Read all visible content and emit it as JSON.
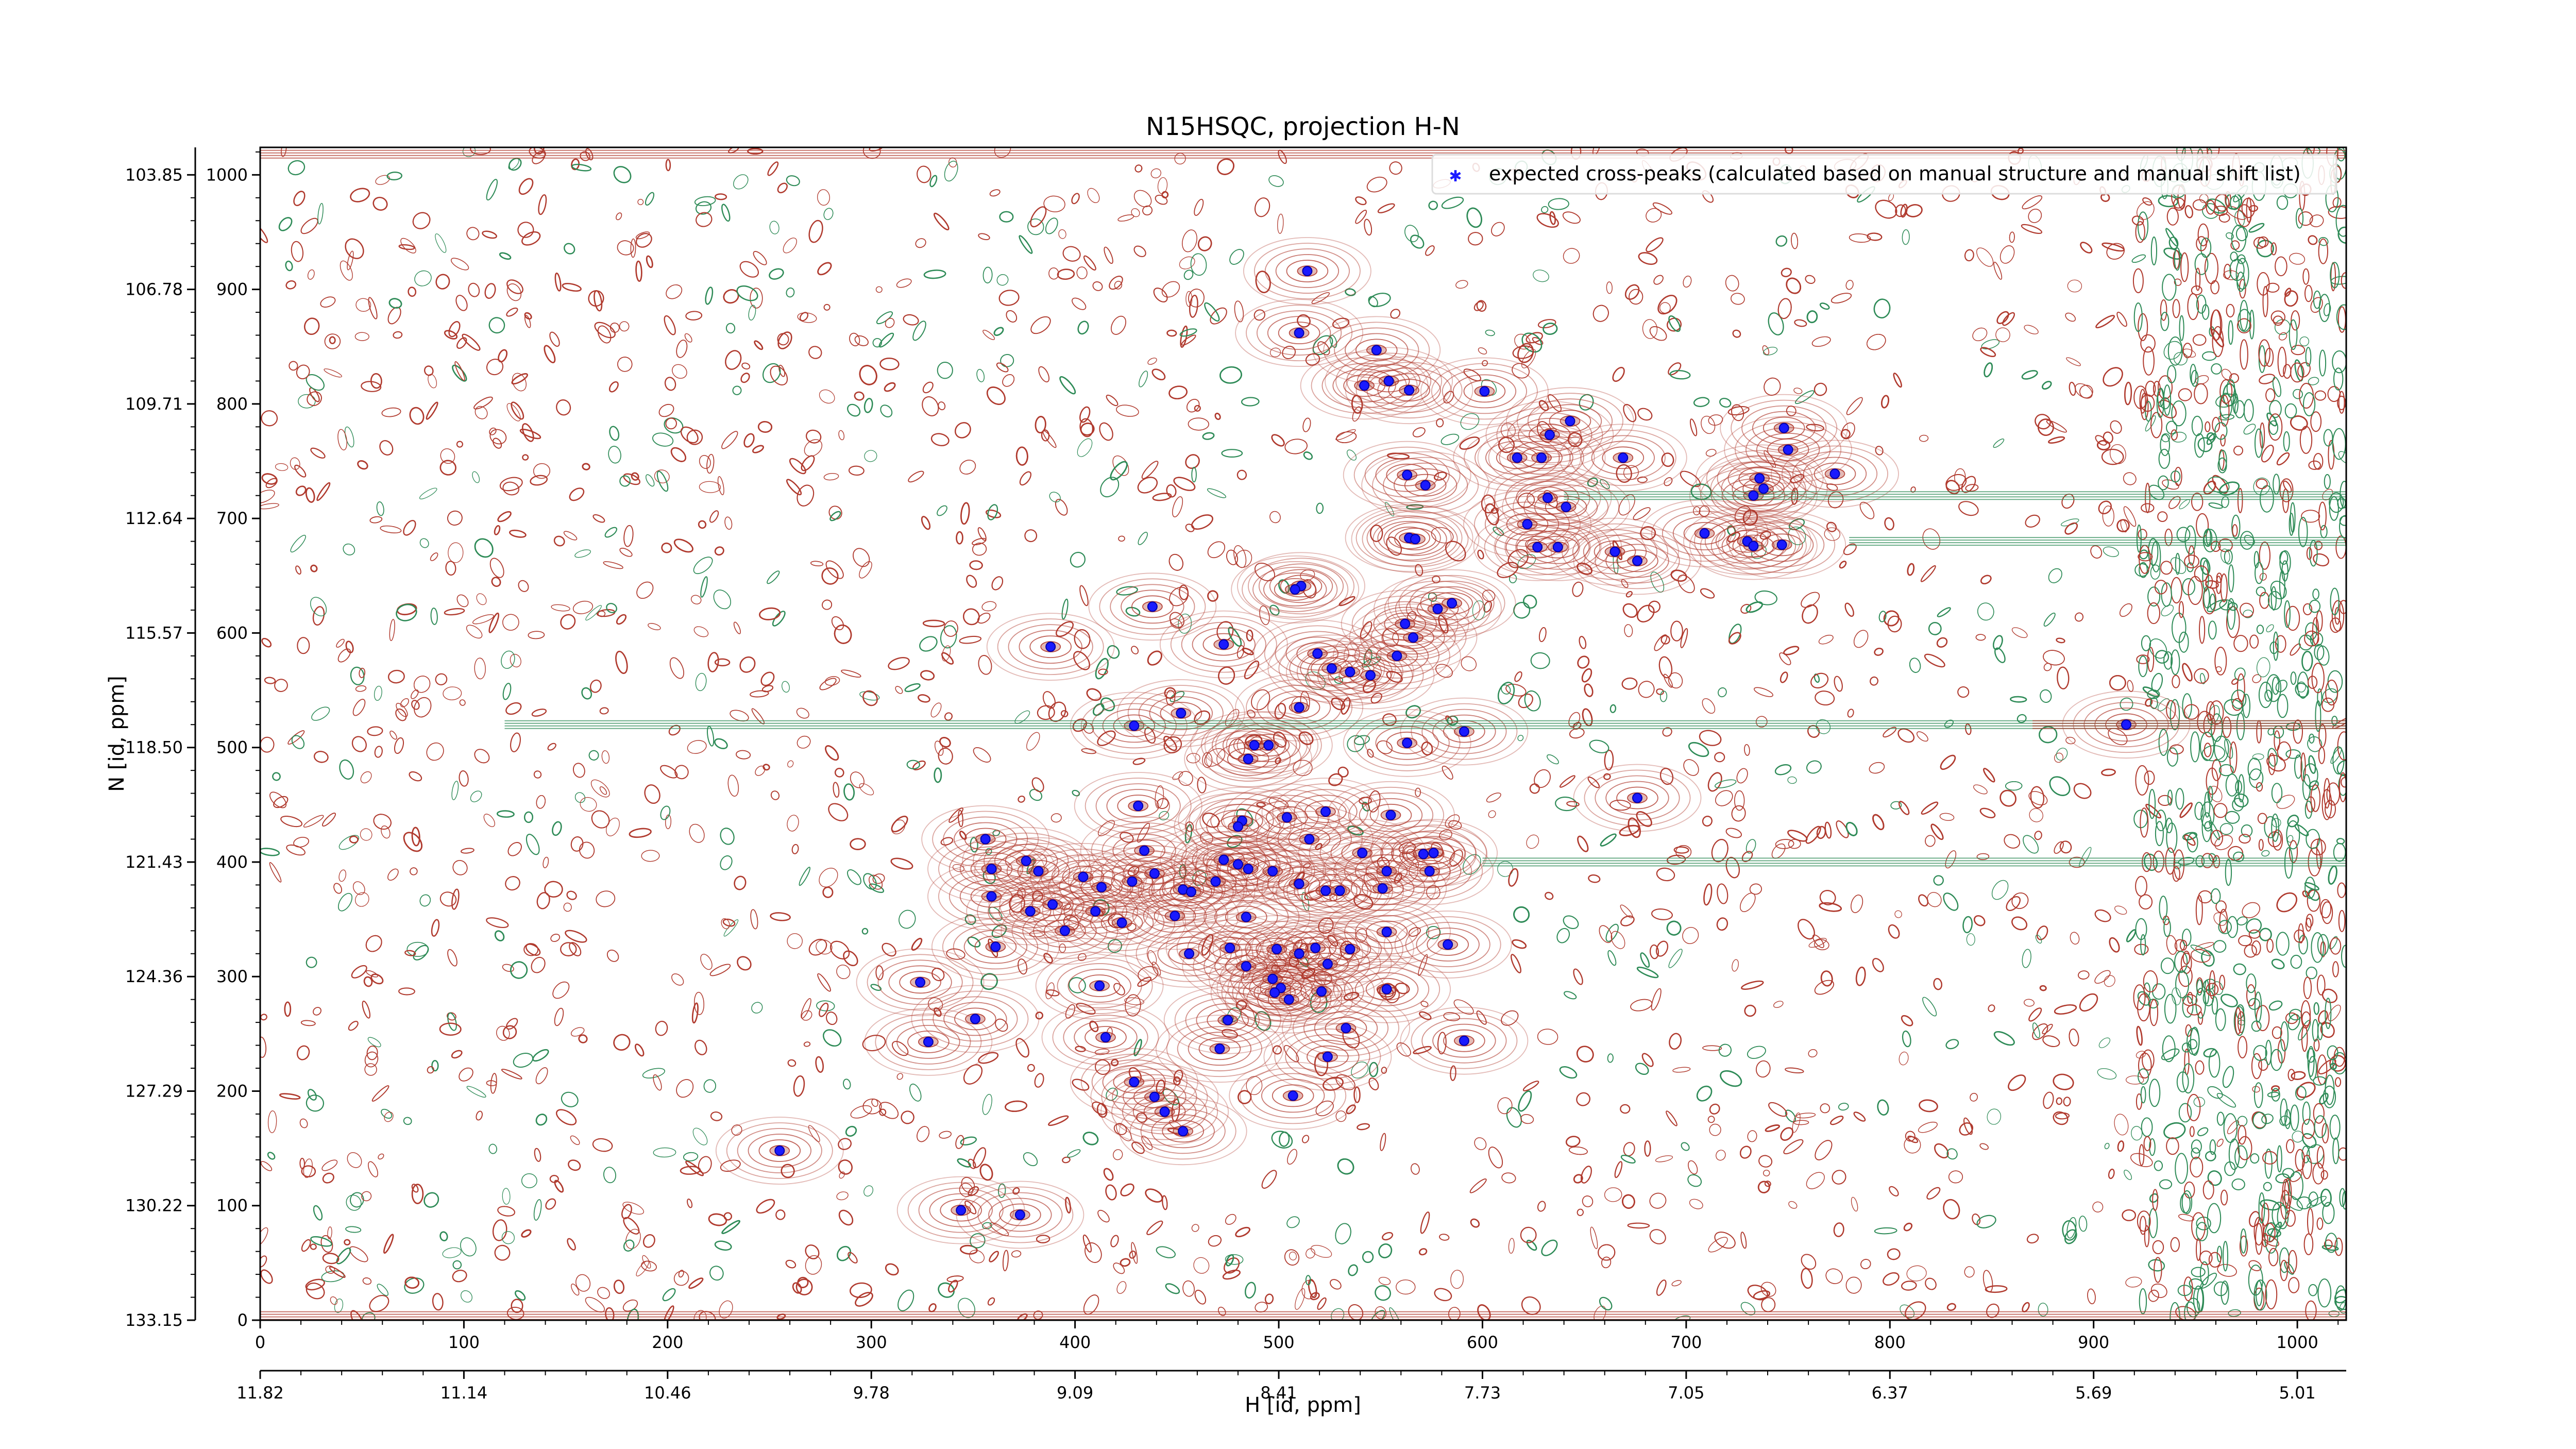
{
  "chart_data": {
    "type": "scatter",
    "title": "N15HSQC, projection H-N",
    "xlabel": "H [id, ppm]",
    "ylabel": "N [id, ppm]",
    "xlim": [
      0,
      1024
    ],
    "ylim": [
      0,
      1024
    ],
    "grid": false,
    "background": "contour plot of NMR spectrum (red positive contours, green negative contours)",
    "x_index_ticks": [
      "0",
      "100",
      "200",
      "300",
      "400",
      "500",
      "600",
      "700",
      "800",
      "900",
      "1000"
    ],
    "x_ppm_ticks": [
      "11.82",
      "11.14",
      "10.46",
      "9.78",
      "9.09",
      "8.41",
      "7.73",
      "7.05",
      "6.37",
      "5.69",
      "5.01"
    ],
    "y_index_ticks": [
      "0",
      "100",
      "200",
      "300",
      "400",
      "500",
      "600",
      "700",
      "800",
      "900",
      "1000"
    ],
    "y_ppm_ticks": [
      "133.15",
      "130.22",
      "127.29",
      "124.36",
      "121.43",
      "118.50",
      "115.57",
      "112.64",
      "109.71",
      "106.78",
      "103.85"
    ],
    "legend": {
      "placement": "top-right",
      "label": "expected cross-peaks (calculated based on manual structure and manual shift list)"
    },
    "colors": {
      "marker": "#1a1aff",
      "positive_contour": "#b03a2e",
      "negative_contour": "#2e8b57",
      "axis": "#000000"
    },
    "series": [
      {
        "name": "expected cross-peaks (calculated based on manual structure and manual shift list)",
        "points": [
          [
            514,
            916
          ],
          [
            510,
            862
          ],
          [
            548,
            847
          ],
          [
            542,
            816
          ],
          [
            554,
            820
          ],
          [
            564,
            812
          ],
          [
            601,
            811
          ],
          [
            617,
            753
          ],
          [
            633,
            773
          ],
          [
            643,
            785
          ],
          [
            629,
            753
          ],
          [
            669,
            753
          ],
          [
            563,
            738
          ],
          [
            572,
            729
          ],
          [
            632,
            718
          ],
          [
            641,
            710
          ],
          [
            622,
            695
          ],
          [
            627,
            675
          ],
          [
            637,
            675
          ],
          [
            564,
            683
          ],
          [
            567,
            682
          ],
          [
            748,
            779
          ],
          [
            750,
            760
          ],
          [
            736,
            735
          ],
          [
            738,
            726
          ],
          [
            733,
            720
          ],
          [
            730,
            680
          ],
          [
            733,
            676
          ],
          [
            747,
            677
          ],
          [
            709,
            687
          ],
          [
            665,
            671
          ],
          [
            676,
            663
          ],
          [
            511,
            641
          ],
          [
            508,
            638
          ],
          [
            585,
            626
          ],
          [
            578,
            621
          ],
          [
            562,
            608
          ],
          [
            566,
            596
          ],
          [
            558,
            580
          ],
          [
            438,
            623
          ],
          [
            388,
            588
          ],
          [
            473,
            590
          ],
          [
            519,
            582
          ],
          [
            526,
            569
          ],
          [
            535,
            566
          ],
          [
            545,
            563
          ],
          [
            510,
            535
          ],
          [
            429,
            519
          ],
          [
            591,
            514
          ],
          [
            452,
            530
          ],
          [
            488,
            502
          ],
          [
            495,
            502
          ],
          [
            485,
            490
          ],
          [
            563,
            504
          ],
          [
            676,
            456
          ],
          [
            555,
            441
          ],
          [
            504,
            439
          ],
          [
            523,
            444
          ],
          [
            431,
            449
          ],
          [
            541,
            408
          ],
          [
            571,
            407
          ],
          [
            482,
            436
          ],
          [
            480,
            431
          ],
          [
            515,
            420
          ],
          [
            473,
            402
          ],
          [
            480,
            398
          ],
          [
            485,
            394
          ],
          [
            497,
            392
          ],
          [
            469,
            383
          ],
          [
            510,
            381
          ],
          [
            523,
            375
          ],
          [
            530,
            375
          ],
          [
            551,
            377
          ],
          [
            576,
            408
          ],
          [
            574,
            392
          ],
          [
            553,
            392
          ],
          [
            356,
            420
          ],
          [
            359,
            394
          ],
          [
            376,
            401
          ],
          [
            382,
            392
          ],
          [
            404,
            387
          ],
          [
            434,
            410
          ],
          [
            439,
            390
          ],
          [
            428,
            383
          ],
          [
            453,
            376
          ],
          [
            457,
            374
          ],
          [
            413,
            378
          ],
          [
            359,
            370
          ],
          [
            389,
            363
          ],
          [
            378,
            357
          ],
          [
            410,
            357
          ],
          [
            449,
            353
          ],
          [
            423,
            347
          ],
          [
            395,
            340
          ],
          [
            484,
            352
          ],
          [
            553,
            339
          ],
          [
            583,
            328
          ],
          [
            476,
            325
          ],
          [
            456,
            320
          ],
          [
            361,
            326
          ],
          [
            499,
            324
          ],
          [
            510,
            320
          ],
          [
            518,
            325
          ],
          [
            484,
            309
          ],
          [
            524,
            311
          ],
          [
            553,
            289
          ],
          [
            535,
            324
          ],
          [
            497,
            298
          ],
          [
            501,
            290
          ],
          [
            505,
            280
          ],
          [
            521,
            287
          ],
          [
            498,
            286
          ],
          [
            324,
            295
          ],
          [
            412,
            292
          ],
          [
            475,
            262
          ],
          [
            533,
            255
          ],
          [
            328,
            243
          ],
          [
            351,
            263
          ],
          [
            415,
            247
          ],
          [
            471,
            237
          ],
          [
            591,
            244
          ],
          [
            524,
            230
          ],
          [
            429,
            208
          ],
          [
            439,
            195
          ],
          [
            507,
            196
          ],
          [
            444,
            182
          ],
          [
            453,
            165
          ],
          [
            255,
            148
          ],
          [
            344,
            96
          ],
          [
            373,
            92
          ],
          [
            916,
            520
          ],
          [
            773,
            739
          ]
        ]
      }
    ]
  }
}
